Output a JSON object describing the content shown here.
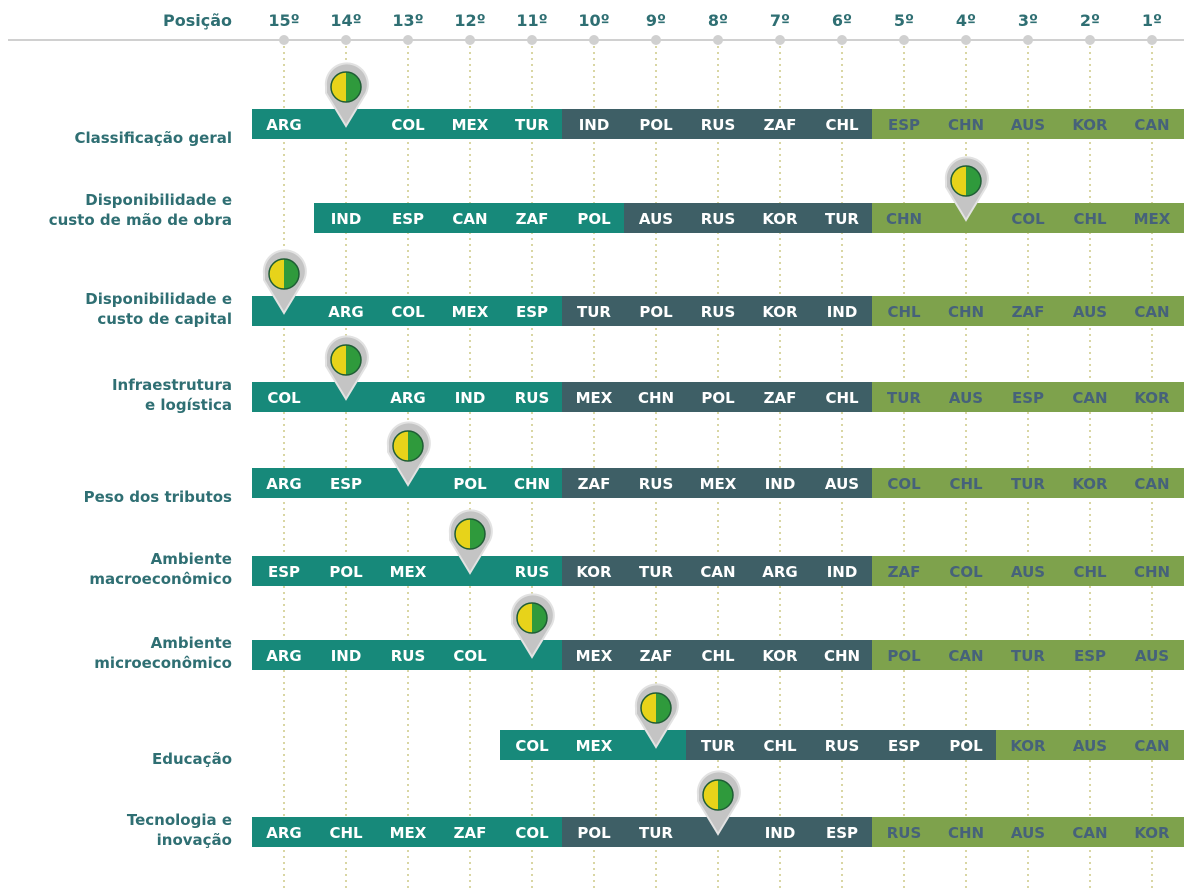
{
  "header": {
    "label": "Posição",
    "positions": [
      "15º",
      "14º",
      "13º",
      "12º",
      "11º",
      "10º",
      "9º",
      "8º",
      "7º",
      "6º",
      "5º",
      "4º",
      "3º",
      "2º",
      "1º"
    ]
  },
  "rows": [
    {
      "label": [
        "Classificação geral"
      ],
      "groups": [
        [
          "ARG",
          null,
          "COL",
          "MEX",
          "TUR"
        ],
        [
          "IND",
          "POL",
          "RUS",
          "ZAF",
          "CHL"
        ],
        [
          "ESP",
          "CHN",
          "AUS",
          "KOR",
          "CAN"
        ]
      ]
    },
    {
      "label": [
        "Disponibilidade e",
        "custo de mão de obra"
      ],
      "groups": [
        [
          "IND",
          "ESP",
          "CAN",
          "ZAF",
          "POL"
        ],
        [
          "AUS",
          "RUS",
          "KOR",
          "TUR"
        ],
        [
          "CHN",
          null,
          "COL",
          "CHL",
          "MEX"
        ]
      ]
    },
    {
      "label": [
        "Disponibilidade e",
        "custo de capital"
      ],
      "groups": [
        [
          null,
          "ARG",
          "COL",
          "MEX",
          "ESP"
        ],
        [
          "TUR",
          "POL",
          "RUS",
          "KOR",
          "IND"
        ],
        [
          "CHL",
          "CHN",
          "ZAF",
          "AUS",
          "CAN"
        ]
      ]
    },
    {
      "label": [
        "Infraestrutura",
        "e logística"
      ],
      "groups": [
        [
          "COL",
          null,
          "ARG",
          "IND",
          "RUS"
        ],
        [
          "MEX",
          "CHN",
          "POL",
          "ZAF",
          "CHL"
        ],
        [
          "TUR",
          "AUS",
          "ESP",
          "CAN",
          "KOR"
        ]
      ]
    },
    {
      "label": [
        "Peso dos tributos"
      ],
      "groups": [
        [
          "ARG",
          "ESP",
          null,
          "POL",
          "CHN"
        ],
        [
          "ZAF",
          "RUS",
          "MEX",
          "IND",
          "AUS"
        ],
        [
          "COL",
          "CHL",
          "TUR",
          "KOR",
          "CAN"
        ]
      ]
    },
    {
      "label": [
        "Ambiente",
        "macroeconômico"
      ],
      "groups": [
        [
          "ESP",
          "POL",
          "MEX",
          null,
          "RUS"
        ],
        [
          "KOR",
          "TUR",
          "CAN",
          "ARG",
          "IND"
        ],
        [
          "ZAF",
          "COL",
          "AUS",
          "CHL",
          "CHN"
        ]
      ]
    },
    {
      "label": [
        "Ambiente",
        "microeconômico"
      ],
      "groups": [
        [
          "ARG",
          "IND",
          "RUS",
          "COL",
          null
        ],
        [
          "MEX",
          "ZAF",
          "CHL",
          "KOR",
          "CHN"
        ],
        [
          "POL",
          "CAN",
          "TUR",
          "ESP",
          "AUS"
        ]
      ]
    },
    {
      "label": [
        "Educação"
      ],
      "groups": [
        [
          "COL",
          "MEX",
          null
        ],
        [
          "TUR",
          "CHL",
          "RUS",
          "ESP",
          "POL"
        ],
        [
          "KOR",
          "AUS",
          "CAN"
        ]
      ]
    },
    {
      "label": [
        "Tecnologia e",
        "inovação"
      ],
      "groups": [
        [
          "ARG",
          "CHL",
          "MEX",
          "ZAF",
          "COL"
        ],
        [
          "POL",
          "TUR",
          null,
          "IND",
          "ESP"
        ],
        [
          "RUS",
          "CHN",
          "AUS",
          "CAN",
          "KOR"
        ]
      ]
    }
  ]
}
